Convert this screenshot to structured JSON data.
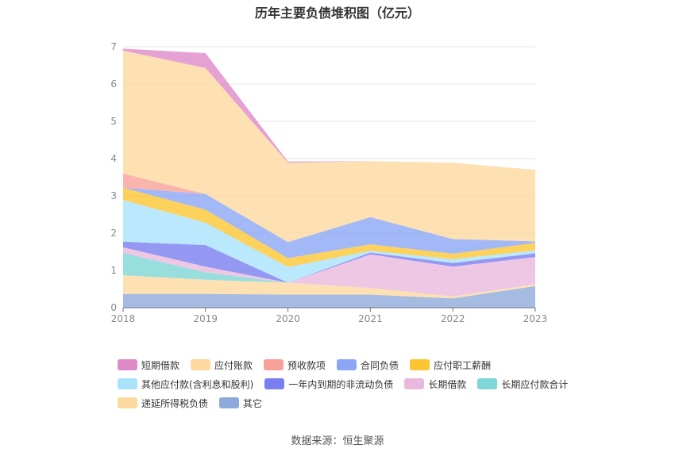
{
  "chart_data": {
    "type": "area",
    "stacked": true,
    "title": "历年主要负债堆积图（亿元）",
    "x": [
      "2018",
      "2019",
      "2020",
      "2021",
      "2022",
      "2023"
    ],
    "ylim": [
      0,
      7
    ],
    "yticks": [
      "0",
      "1",
      "2",
      "3",
      "4",
      "5",
      "6",
      "7"
    ],
    "grid": true,
    "legend_position": "bottom",
    "series": [
      {
        "name": "其它",
        "color": "#8eaadb",
        "values": [
          0.37,
          0.37,
          0.35,
          0.35,
          0.25,
          0.58
        ]
      },
      {
        "name": "递延所得税负债",
        "color": "#fdd9a0",
        "values": [
          0.5,
          0.38,
          0.32,
          0.18,
          0.05,
          0.05
        ]
      },
      {
        "name": "长期应付款合计",
        "color": "#7fd6d6",
        "values": [
          0.6,
          0.2,
          0.0,
          0.0,
          0.0,
          0.0
        ]
      },
      {
        "name": "长期借款",
        "color": "#e8b9dc",
        "values": [
          0.15,
          0.15,
          0.0,
          0.9,
          0.8,
          0.73
        ]
      },
      {
        "name": "一年内到期的非流动负债",
        "color": "#7b7ef0",
        "values": [
          0.15,
          0.58,
          0.0,
          0.05,
          0.1,
          0.1
        ]
      },
      {
        "name": "其他应付款(含利息和股利)",
        "color": "#a9e2fb",
        "values": [
          1.12,
          0.6,
          0.42,
          0.05,
          0.1,
          0.08
        ]
      },
      {
        "name": "应付职工薪酬",
        "color": "#fbc533",
        "values": [
          0.33,
          0.35,
          0.24,
          0.17,
          0.15,
          0.2
        ]
      },
      {
        "name": "合同负债",
        "color": "#8ba6f5",
        "values": [
          0.0,
          0.42,
          0.43,
          0.73,
          0.39,
          0.04
        ]
      },
      {
        "name": "预收款项",
        "color": "#f7a19a",
        "values": [
          0.38,
          0.0,
          0.0,
          0.0,
          0.0,
          0.0
        ]
      },
      {
        "name": "应付账款",
        "color": "#fdd9a0",
        "values": [
          3.3,
          3.38,
          2.13,
          1.5,
          2.05,
          1.92
        ]
      },
      {
        "name": "短期借款",
        "color": "#df8ac8",
        "values": [
          0.05,
          0.4,
          0.03,
          0.0,
          0.0,
          0.0
        ]
      }
    ],
    "legend_order": [
      "短期借款",
      "应付账款",
      "预收款项",
      "合同负债",
      "应付职工薪酬",
      "其他应付款(含利息和股利)",
      "一年内到期的非流动负债",
      "长期借款",
      "长期应付款合计",
      "递延所得税负债",
      "其它"
    ],
    "legend_colors": [
      "#df8ac8",
      "#fdd9a0",
      "#f7a19a",
      "#8ba6f5",
      "#fbc533",
      "#a9e2fb",
      "#7b7ef0",
      "#e8b9dc",
      "#7fd6d6",
      "#fdd9a0",
      "#8eaadb"
    ]
  },
  "source": "数据来源：恒生聚源"
}
